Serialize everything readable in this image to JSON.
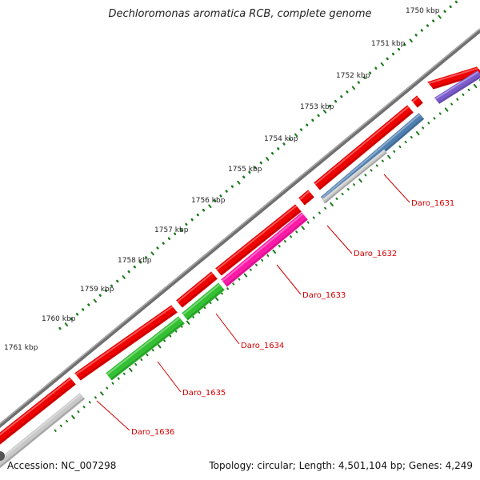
{
  "title": "Dechloromonas aromatica RCB, complete genome",
  "footer": {
    "accession": "Accession: NC_007298",
    "summary": "Topology: circular; Length: 4,501,104 bp; Genes: 4,249"
  },
  "kbp_labels": [
    "1750 kbp",
    "1751 kbp",
    "1752 kbp",
    "1753 kbp",
    "1754 kbp",
    "1755 kbp",
    "1756 kbp",
    "1757 kbp",
    "1758 kbp",
    "1759 kbp",
    "1760 kbp",
    "1761 kbp"
  ],
  "genes": [
    {
      "name": "Daro_1631",
      "color": "#4f7fb0"
    },
    {
      "name": "Daro_1632",
      "color": "#c8c8c8"
    },
    {
      "name": "Daro_1633",
      "color": "#ff1aa8"
    },
    {
      "name": "Daro_1634",
      "color": "#33c033"
    },
    {
      "name": "Daro_1635",
      "color": "#33c033"
    },
    {
      "name": "Daro_1636",
      "color": "#c8c8c8"
    }
  ],
  "colors": {
    "backbone": "#6f6f6f",
    "cds": "#ee0000",
    "rna_purple": "#7a5ccc",
    "tick": "#1b7a1b",
    "label": "#d40000"
  }
}
